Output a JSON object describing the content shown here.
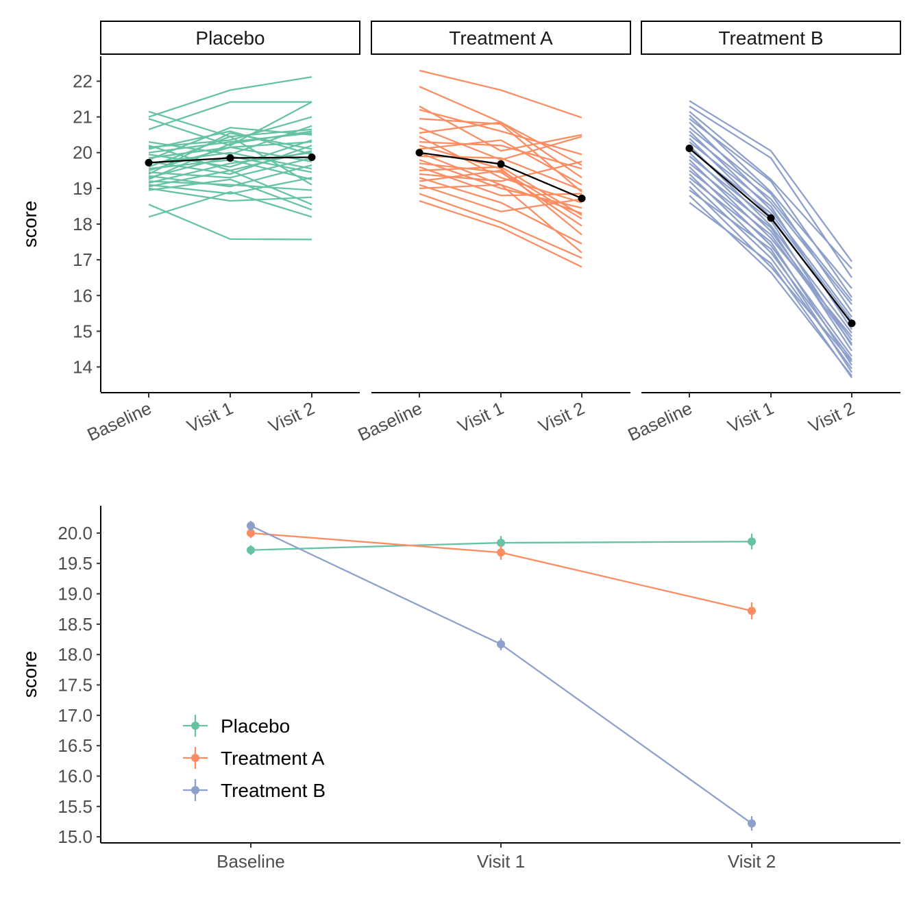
{
  "chart_data": [
    {
      "type": "line",
      "facet": "group",
      "panels": [
        "Placebo",
        "Treatment A",
        "Treatment B"
      ],
      "categories": [
        "Baseline",
        "Visit 1",
        "Visit 2"
      ],
      "ylabel": "score",
      "ylim": [
        13.3,
        22.7
      ],
      "yticks": [
        14,
        15,
        16,
        17,
        18,
        19,
        20,
        21,
        22
      ],
      "grid": false,
      "colors": {
        "Placebo": "#66c2a5",
        "Treatment A": "#fc8d62",
        "Treatment B": "#8da0cb",
        "mean": "#000000"
      },
      "means": [
        {
          "panel": "Placebo",
          "values": [
            19.72,
            19.85,
            19.87
          ]
        },
        {
          "panel": "Treatment A",
          "values": [
            20.0,
            19.68,
            18.72
          ]
        },
        {
          "panel": "Treatment B",
          "values": [
            20.12,
            18.17,
            15.22
          ]
        }
      ],
      "subjects": [
        {
          "panel": "Placebo",
          "lines": [
            [
              21.15,
              20.45,
              19.1
            ],
            [
              21.0,
              21.75,
              22.12
            ],
            [
              20.95,
              20.2,
              21.42
            ],
            [
              20.65,
              21.42,
              21.42
            ],
            [
              20.3,
              19.95,
              20.75
            ],
            [
              20.15,
              20.35,
              21.0
            ],
            [
              20.2,
              19.5,
              20.05
            ],
            [
              20.1,
              20.6,
              19.95
            ],
            [
              20.0,
              20.3,
              20.55
            ],
            [
              19.95,
              19.6,
              20.35
            ],
            [
              19.85,
              20.15,
              19.75
            ],
            [
              19.8,
              20.7,
              20.5
            ],
            [
              19.75,
              19.4,
              20.2
            ],
            [
              19.7,
              20.0,
              19.55
            ],
            [
              19.6,
              20.45,
              20.65
            ],
            [
              19.55,
              19.8,
              19.25
            ],
            [
              19.5,
              20.15,
              20.3
            ],
            [
              19.45,
              19.3,
              19.85
            ],
            [
              19.4,
              20.55,
              20.1
            ],
            [
              19.35,
              19.05,
              19.65
            ],
            [
              19.3,
              19.9,
              19.45
            ],
            [
              19.25,
              20.25,
              20.6
            ],
            [
              19.2,
              19.1,
              18.95
            ],
            [
              19.15,
              19.7,
              20.0
            ],
            [
              19.1,
              18.85,
              19.3
            ],
            [
              19.05,
              19.5,
              18.55
            ],
            [
              19.0,
              18.65,
              18.75
            ],
            [
              18.95,
              19.25,
              18.4
            ],
            [
              18.55,
              17.58,
              17.57
            ],
            [
              18.2,
              18.9,
              18.2
            ]
          ]
        },
        {
          "panel": "Treatment A",
          "lines": [
            [
              22.3,
              21.75,
              20.98
            ],
            [
              21.85,
              20.85,
              19.65
            ],
            [
              21.3,
              20.05,
              20.5
            ],
            [
              21.2,
              20.6,
              19.95
            ],
            [
              20.95,
              20.8,
              18.9
            ],
            [
              20.7,
              19.8,
              20.45
            ],
            [
              20.55,
              20.85,
              19.3
            ],
            [
              20.45,
              19.3,
              18.6
            ],
            [
              20.3,
              20.2,
              19.55
            ],
            [
              20.2,
              19.55,
              17.7
            ],
            [
              20.1,
              20.35,
              19.1
            ],
            [
              20.0,
              19.1,
              18.3
            ],
            [
              19.9,
              19.85,
              18.95
            ],
            [
              19.8,
              19.0,
              18.45
            ],
            [
              19.7,
              19.45,
              17.95
            ],
            [
              19.6,
              18.8,
              18.85
            ],
            [
              19.5,
              19.6,
              18.25
            ],
            [
              19.4,
              19.2,
              19.75
            ],
            [
              19.3,
              18.6,
              17.45
            ],
            [
              19.2,
              19.5,
              18.15
            ],
            [
              19.1,
              18.35,
              18.7
            ],
            [
              19.0,
              19.1,
              17.2
            ],
            [
              18.85,
              18.05,
              17.05
            ],
            [
              18.65,
              17.9,
              16.8
            ]
          ]
        },
        {
          "panel": "Treatment B",
          "lines": [
            [
              21.45,
              20.05,
              16.95
            ],
            [
              21.3,
              19.85,
              16.5
            ],
            [
              21.15,
              19.25,
              16.75
            ],
            [
              21.05,
              18.9,
              16.2
            ],
            [
              20.95,
              19.2,
              15.95
            ],
            [
              20.85,
              18.6,
              15.75
            ],
            [
              20.7,
              18.85,
              15.55
            ],
            [
              20.6,
              18.4,
              15.4
            ],
            [
              20.5,
              18.7,
              15.85
            ],
            [
              20.4,
              18.2,
              15.2
            ],
            [
              20.3,
              18.5,
              15.05
            ],
            [
              20.2,
              17.95,
              14.95
            ],
            [
              20.1,
              18.3,
              15.3
            ],
            [
              20.0,
              17.8,
              14.75
            ],
            [
              19.9,
              18.1,
              14.6
            ],
            [
              19.8,
              17.6,
              14.85
            ],
            [
              19.7,
              17.9,
              14.45
            ],
            [
              19.6,
              17.4,
              14.3
            ],
            [
              19.5,
              17.7,
              14.65
            ],
            [
              19.4,
              17.2,
              14.2
            ],
            [
              19.3,
              17.5,
              14.05
            ],
            [
              19.2,
              17.05,
              13.95
            ],
            [
              19.05,
              16.8,
              14.15
            ],
            [
              18.95,
              17.3,
              13.85
            ],
            [
              18.8,
              16.65,
              13.75
            ],
            [
              18.6,
              16.9,
              13.7
            ]
          ]
        }
      ]
    },
    {
      "type": "line",
      "categories": [
        "Baseline",
        "Visit 1",
        "Visit 2"
      ],
      "ylabel": "score",
      "ylim": [
        14.9,
        20.45
      ],
      "yticks": [
        "15.0",
        "15.5",
        "16.0",
        "16.5",
        "17.0",
        "17.5",
        "18.0",
        "18.5",
        "19.0",
        "19.5",
        "20.0"
      ],
      "grid": false,
      "error_bars": true,
      "legend": {
        "placement": "bottom-left inside",
        "entries": [
          "Placebo",
          "Treatment A",
          "Treatment B"
        ]
      },
      "series": [
        {
          "name": "Placebo",
          "color": "#66c2a5",
          "values": [
            19.72,
            19.84,
            19.86
          ],
          "errors": [
            0.08,
            0.11,
            0.13
          ]
        },
        {
          "name": "Treatment A",
          "color": "#fc8d62",
          "values": [
            20.0,
            19.68,
            18.72
          ],
          "errors": [
            0.08,
            0.12,
            0.14
          ]
        },
        {
          "name": "Treatment B",
          "color": "#8da0cb",
          "values": [
            20.12,
            18.17,
            15.22
          ],
          "errors": [
            0.08,
            0.1,
            0.12
          ]
        }
      ]
    }
  ]
}
